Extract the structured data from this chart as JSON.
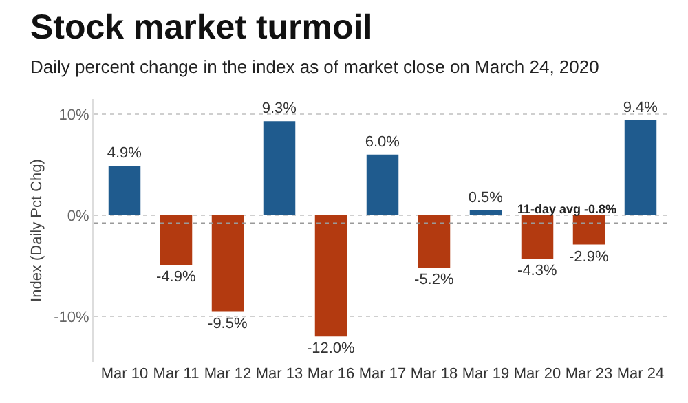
{
  "chart_data": {
    "type": "bar",
    "title": "Stock market turmoil",
    "subtitle": "Daily percent change in the index as of market close on March 24, 2020",
    "ylabel": "Index (Daily Pct Chg)",
    "categories": [
      "Mar 10",
      "Mar 11",
      "Mar 12",
      "Mar 13",
      "Mar 16",
      "Mar 17",
      "Mar 18",
      "Mar 19",
      "Mar 20",
      "Mar 23",
      "Mar 24"
    ],
    "values": [
      4.9,
      -4.9,
      -9.5,
      9.3,
      -12.0,
      6.0,
      -5.2,
      0.5,
      -4.3,
      -2.9,
      9.4
    ],
    "value_labels": [
      "4.9%",
      "-4.9%",
      "-9.5%",
      "9.3%",
      "-12.0%",
      "6.0%",
      "-5.2%",
      "0.5%",
      "-4.3%",
      "-2.9%",
      "9.4%"
    ],
    "colors": [
      "#1f5b8e",
      "#b33a10",
      "#b33a10",
      "#1f5b8e",
      "#b33a10",
      "#1f5b8e",
      "#b33a10",
      "#1f5b8e",
      "#b33a10",
      "#b33a10",
      "#1f5b8e"
    ],
    "ylim": [
      -14.5,
      11.5
    ],
    "yticks": [
      {
        "value": -10,
        "label": "-10%"
      },
      {
        "value": 0,
        "label": "0%"
      },
      {
        "value": 10,
        "label": "10%"
      }
    ],
    "grid": "y",
    "ref_lines": [
      {
        "axis": "y",
        "value": -0.8,
        "label": "11-day avg -0.8%",
        "color": "#9a9a9a",
        "line_style": "dotted"
      }
    ]
  }
}
